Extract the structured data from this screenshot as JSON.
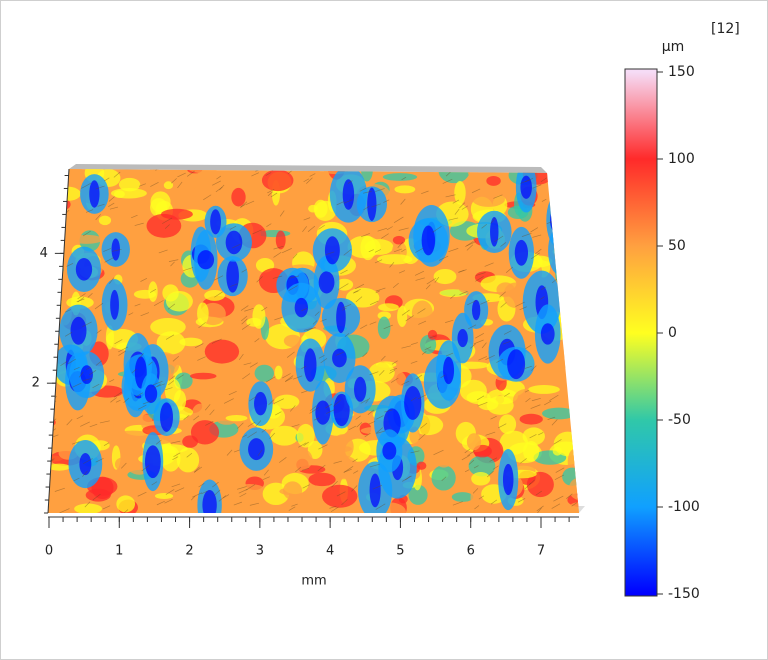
{
  "chart_data": {
    "type": "surface",
    "annotation": "[12]",
    "x_label": "mm",
    "xlim": [
      0,
      7.4
    ],
    "xticks": [
      0,
      1,
      2,
      3,
      4,
      5,
      6,
      7
    ],
    "ylim": [
      0,
      5.3
    ],
    "yticks": [
      2,
      4
    ],
    "colorbar": {
      "label": "µm",
      "lim": [
        -150,
        150
      ],
      "ticks": [
        150,
        100,
        50,
        0,
        -50,
        -100,
        -150
      ],
      "colors": [
        "#f6dcf6",
        "#ff2a2a",
        "#ffa040",
        "#ffff20",
        "#30c8a8",
        "#10a0ff",
        "#0000ff"
      ]
    }
  }
}
